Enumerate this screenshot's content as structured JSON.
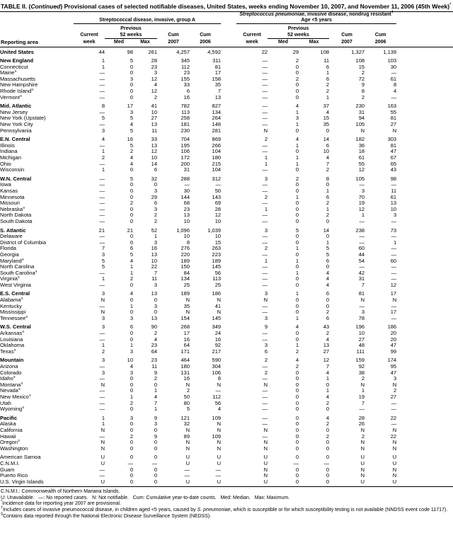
{
  "title": {
    "prefix": "TABLE II. (",
    "italic": "Continued",
    "suffix": ") Provisional cases of selected notifiable diseases, United States, weeks ending November 10, 2007, and November 11, 2006 (45th Week)",
    "star": "*"
  },
  "header": {
    "reporting_area": "Reporting area",
    "group1": {
      "label": "Streptococcal disease, invasive, group A"
    },
    "group2": {
      "label_italic": "Streptococcus pneumoniae",
      "label_rest": ", invasive disease, nondrug resistant",
      "dagger": "†",
      "label_line2": "Age <5 years"
    },
    "sub": {
      "current": "Current",
      "week": "week",
      "previous": "Previous",
      "weeks52": "52 weeks",
      "med": "Med",
      "max": "Max",
      "cum": "Cum",
      "y2007": "2007",
      "y2006": "2006"
    }
  },
  "table": {
    "rows": [
      {
        "area": "United States",
        "bold": true,
        "gap": false,
        "v": [
          "44",
          "98",
          "261",
          "4,257",
          "4,592",
          "22",
          "29",
          "108",
          "1,327",
          "1,139"
        ]
      },
      {
        "area": "New England",
        "bold": true,
        "gap": true,
        "v": [
          "1",
          "5",
          "28",
          "345",
          "311",
          "—",
          "2",
          "11",
          "108",
          "103"
        ]
      },
      {
        "area": "Connecticut",
        "bold": false,
        "gap": false,
        "v": [
          "1",
          "0",
          "23",
          "112",
          "81",
          "—",
          "0",
          "6",
          "15",
          "30"
        ]
      },
      {
        "area": "Maine§",
        "bold": false,
        "gap": false,
        "v": [
          "—",
          "0",
          "3",
          "23",
          "17",
          "—",
          "0",
          "1",
          "2",
          "—"
        ]
      },
      {
        "area": "Massachusetts",
        "bold": false,
        "gap": false,
        "v": [
          "—",
          "3",
          "12",
          "155",
          "158",
          "—",
          "2",
          "6",
          "72",
          "61"
        ]
      },
      {
        "area": "New Hampshire",
        "bold": false,
        "gap": false,
        "v": [
          "—",
          "0",
          "4",
          "33",
          "35",
          "—",
          "0",
          "2",
          "9",
          "8"
        ]
      },
      {
        "area": "Rhode Island§",
        "bold": false,
        "gap": false,
        "v": [
          "—",
          "0",
          "12",
          "6",
          "7",
          "—",
          "0",
          "2",
          "8",
          "4"
        ]
      },
      {
        "area": "Vermont§",
        "bold": false,
        "gap": false,
        "v": [
          "—",
          "0",
          "2",
          "16",
          "13",
          "—",
          "0",
          "1",
          "2",
          "—"
        ]
      },
      {
        "area": "Mid. Atlantic",
        "bold": true,
        "gap": true,
        "v": [
          "8",
          "17",
          "41",
          "782",
          "827",
          "—",
          "4",
          "37",
          "230",
          "163"
        ]
      },
      {
        "area": "New Jersey",
        "bold": false,
        "gap": false,
        "v": [
          "—",
          "3",
          "10",
          "113",
          "134",
          "—",
          "1",
          "4",
          "31",
          "55"
        ]
      },
      {
        "area": "New York (Upstate)",
        "bold": false,
        "gap": false,
        "v": [
          "5",
          "5",
          "27",
          "258",
          "264",
          "—",
          "3",
          "15",
          "94",
          "81"
        ]
      },
      {
        "area": "New York City",
        "bold": false,
        "gap": false,
        "v": [
          "—",
          "4",
          "13",
          "181",
          "148",
          "—",
          "1",
          "35",
          "105",
          "27"
        ]
      },
      {
        "area": "Pennsylvania",
        "bold": false,
        "gap": false,
        "v": [
          "3",
          "5",
          "11",
          "230",
          "281",
          "N",
          "0",
          "0",
          "N",
          "N"
        ]
      },
      {
        "area": "E.N. Central",
        "bold": true,
        "gap": true,
        "v": [
          "4",
          "16",
          "33",
          "704",
          "869",
          "2",
          "4",
          "14",
          "182",
          "303"
        ]
      },
      {
        "area": "Illinois",
        "bold": false,
        "gap": false,
        "v": [
          "—",
          "5",
          "13",
          "195",
          "266",
          "—",
          "1",
          "6",
          "36",
          "81"
        ]
      },
      {
        "area": "Indiana",
        "bold": false,
        "gap": false,
        "v": [
          "1",
          "2",
          "12",
          "106",
          "104",
          "—",
          "0",
          "10",
          "18",
          "47"
        ]
      },
      {
        "area": "Michigan",
        "bold": false,
        "gap": false,
        "v": [
          "2",
          "4",
          "10",
          "172",
          "180",
          "1",
          "1",
          "4",
          "61",
          "67"
        ]
      },
      {
        "area": "Ohio",
        "bold": false,
        "gap": false,
        "v": [
          "—",
          "4",
          "14",
          "200",
          "215",
          "1",
          "1",
          "7",
          "55",
          "65"
        ]
      },
      {
        "area": "Wisconsin",
        "bold": false,
        "gap": false,
        "v": [
          "1",
          "0",
          "6",
          "31",
          "104",
          "—",
          "0",
          "2",
          "12",
          "43"
        ]
      },
      {
        "area": "W.N. Central",
        "bold": true,
        "gap": true,
        "v": [
          "—",
          "5",
          "32",
          "288",
          "312",
          "3",
          "2",
          "8",
          "105",
          "98"
        ]
      },
      {
        "area": "Iowa",
        "bold": false,
        "gap": false,
        "v": [
          "—",
          "0",
          "0",
          "—",
          "—",
          "—",
          "0",
          "0",
          "—",
          "—"
        ]
      },
      {
        "area": "Kansas",
        "bold": false,
        "gap": false,
        "v": [
          "—",
          "0",
          "3",
          "30",
          "50",
          "—",
          "0",
          "1",
          "3",
          "11"
        ]
      },
      {
        "area": "Minnesota",
        "bold": false,
        "gap": false,
        "v": [
          "—",
          "0",
          "29",
          "144",
          "143",
          "2",
          "1",
          "6",
          "70",
          "61"
        ]
      },
      {
        "area": "Missouri",
        "bold": false,
        "gap": false,
        "v": [
          "—",
          "2",
          "6",
          "68",
          "69",
          "—",
          "0",
          "2",
          "19",
          "13"
        ]
      },
      {
        "area": "Nebraska§",
        "bold": false,
        "gap": false,
        "v": [
          "—",
          "0",
          "3",
          "23",
          "28",
          "1",
          "0",
          "1",
          "12",
          "10"
        ]
      },
      {
        "area": "North Dakota",
        "bold": false,
        "gap": false,
        "v": [
          "—",
          "0",
          "2",
          "13",
          "12",
          "—",
          "0",
          "2",
          "1",
          "3"
        ]
      },
      {
        "area": "South Dakota",
        "bold": false,
        "gap": false,
        "v": [
          "—",
          "0",
          "2",
          "10",
          "10",
          "—",
          "0",
          "0",
          "—",
          "—"
        ]
      },
      {
        "area": "S. Atlantic",
        "bold": true,
        "gap": true,
        "v": [
          "21",
          "21",
          "52",
          "1,096",
          "1,039",
          "3",
          "5",
          "14",
          "238",
          "73"
        ]
      },
      {
        "area": "Delaware",
        "bold": false,
        "gap": false,
        "v": [
          "—",
          "0",
          "1",
          "10",
          "10",
          "—",
          "0",
          "0",
          "—",
          "—"
        ]
      },
      {
        "area": "District of Columbia",
        "bold": false,
        "gap": false,
        "v": [
          "—",
          "0",
          "3",
          "8",
          "15",
          "—",
          "0",
          "1",
          "—",
          "1"
        ]
      },
      {
        "area": "Florida",
        "bold": false,
        "gap": false,
        "v": [
          "7",
          "6",
          "16",
          "276",
          "263",
          "2",
          "1",
          "5",
          "60",
          "—"
        ]
      },
      {
        "area": "Georgia",
        "bold": false,
        "gap": false,
        "v": [
          "3",
          "5",
          "13",
          "220",
          "223",
          "—",
          "0",
          "5",
          "44",
          "—"
        ]
      },
      {
        "area": "Maryland§",
        "bold": false,
        "gap": false,
        "v": [
          "5",
          "4",
          "10",
          "189",
          "189",
          "1",
          "1",
          "6",
          "54",
          "60"
        ]
      },
      {
        "area": "North Carolina",
        "bold": false,
        "gap": false,
        "v": [
          "5",
          "1",
          "22",
          "150",
          "145",
          "—",
          "0",
          "0",
          "—",
          "—"
        ]
      },
      {
        "area": "South Carolina§",
        "bold": false,
        "gap": false,
        "v": [
          "—",
          "1",
          "7",
          "84",
          "56",
          "—",
          "1",
          "4",
          "42",
          "—"
        ]
      },
      {
        "area": "Virginia§",
        "bold": false,
        "gap": false,
        "v": [
          "1",
          "2",
          "11",
          "134",
          "113",
          "—",
          "0",
          "4",
          "31",
          "—"
        ]
      },
      {
        "area": "West Virginia",
        "bold": false,
        "gap": false,
        "v": [
          "—",
          "0",
          "3",
          "25",
          "25",
          "—",
          "0",
          "4",
          "7",
          "12"
        ]
      },
      {
        "area": "E.S. Central",
        "bold": true,
        "gap": true,
        "v": [
          "3",
          "4",
          "13",
          "189",
          "186",
          "3",
          "1",
          "6",
          "81",
          "17"
        ]
      },
      {
        "area": "Alabama§",
        "bold": false,
        "gap": false,
        "v": [
          "N",
          "0",
          "0",
          "N",
          "N",
          "N",
          "0",
          "0",
          "N",
          "N"
        ]
      },
      {
        "area": "Kentucky",
        "bold": false,
        "gap": false,
        "v": [
          "—",
          "1",
          "3",
          "35",
          "41",
          "—",
          "0",
          "0",
          "—",
          "—"
        ]
      },
      {
        "area": "Mississippi",
        "bold": false,
        "gap": false,
        "v": [
          "N",
          "0",
          "0",
          "N",
          "N",
          "—",
          "0",
          "2",
          "3",
          "17"
        ]
      },
      {
        "area": "Tennessee§",
        "bold": false,
        "gap": false,
        "v": [
          "3",
          "3",
          "13",
          "154",
          "145",
          "3",
          "1",
          "6",
          "78",
          "—"
        ]
      },
      {
        "area": "W.S. Central",
        "bold": true,
        "gap": true,
        "v": [
          "3",
          "6",
          "90",
          "268",
          "349",
          "9",
          "4",
          "43",
          "196",
          "186"
        ]
      },
      {
        "area": "Arkansas§",
        "bold": false,
        "gap": false,
        "v": [
          "—",
          "0",
          "2",
          "17",
          "24",
          "—",
          "0",
          "2",
          "10",
          "20"
        ]
      },
      {
        "area": "Louisiana",
        "bold": false,
        "gap": false,
        "v": [
          "—",
          "0",
          "4",
          "16",
          "16",
          "—",
          "0",
          "4",
          "27",
          "20"
        ]
      },
      {
        "area": "Oklahoma",
        "bold": false,
        "gap": false,
        "v": [
          "1",
          "1",
          "23",
          "64",
          "92",
          "3",
          "1",
          "13",
          "48",
          "47"
        ]
      },
      {
        "area": "Texas§",
        "bold": false,
        "gap": false,
        "v": [
          "2",
          "3",
          "64",
          "171",
          "217",
          "6",
          "2",
          "27",
          "111",
          "99"
        ]
      },
      {
        "area": "Mountain",
        "bold": true,
        "gap": true,
        "v": [
          "3",
          "10",
          "23",
          "464",
          "590",
          "2",
          "4",
          "12",
          "159",
          "174"
        ]
      },
      {
        "area": "Arizona",
        "bold": false,
        "gap": false,
        "v": [
          "—",
          "4",
          "11",
          "180",
          "304",
          "—",
          "2",
          "7",
          "92",
          "95"
        ]
      },
      {
        "area": "Colorado",
        "bold": false,
        "gap": false,
        "v": [
          "3",
          "3",
          "9",
          "131",
          "106",
          "2",
          "0",
          "4",
          "38",
          "47"
        ]
      },
      {
        "area": "Idaho§",
        "bold": false,
        "gap": false,
        "v": [
          "—",
          "0",
          "2",
          "16",
          "8",
          "—",
          "0",
          "1",
          "2",
          "3"
        ]
      },
      {
        "area": "Montana§",
        "bold": false,
        "gap": false,
        "v": [
          "N",
          "0",
          "0",
          "N",
          "N",
          "N",
          "0",
          "0",
          "N",
          "N"
        ]
      },
      {
        "area": "Nevada§",
        "bold": false,
        "gap": false,
        "v": [
          "—",
          "0",
          "1",
          "2",
          "—",
          "—",
          "0",
          "1",
          "1",
          "2"
        ]
      },
      {
        "area": "New Mexico§",
        "bold": false,
        "gap": false,
        "v": [
          "—",
          "1",
          "4",
          "50",
          "112",
          "—",
          "0",
          "4",
          "19",
          "27"
        ]
      },
      {
        "area": "Utah",
        "bold": false,
        "gap": false,
        "v": [
          "—",
          "2",
          "7",
          "80",
          "56",
          "—",
          "0",
          "2",
          "7",
          "—"
        ]
      },
      {
        "area": "Wyoming§",
        "bold": false,
        "gap": false,
        "v": [
          "—",
          "0",
          "1",
          "5",
          "4",
          "—",
          "0",
          "0",
          "—",
          "—"
        ]
      },
      {
        "area": "Pacific",
        "bold": true,
        "gap": true,
        "v": [
          "1",
          "3",
          "9",
          "121",
          "109",
          "—",
          "0",
          "4",
          "28",
          "22"
        ]
      },
      {
        "area": "Alaska",
        "bold": false,
        "gap": false,
        "v": [
          "1",
          "0",
          "3",
          "32",
          "N",
          "—",
          "0",
          "2",
          "26",
          "—"
        ]
      },
      {
        "area": "California",
        "bold": false,
        "gap": false,
        "v": [
          "N",
          "0",
          "0",
          "N",
          "N",
          "N",
          "0",
          "0",
          "N",
          "N"
        ]
      },
      {
        "area": "Hawaii",
        "bold": false,
        "gap": false,
        "v": [
          "—",
          "2",
          "9",
          "89",
          "109",
          "—",
          "0",
          "2",
          "2",
          "22"
        ]
      },
      {
        "area": "Oregon§",
        "bold": false,
        "gap": false,
        "v": [
          "N",
          "0",
          "0",
          "N",
          "N",
          "N",
          "0",
          "0",
          "N",
          "N"
        ]
      },
      {
        "area": "Washington",
        "bold": false,
        "gap": false,
        "v": [
          "N",
          "0",
          "0",
          "N",
          "N",
          "N",
          "0",
          "0",
          "N",
          "N"
        ]
      },
      {
        "area": "American Samoa",
        "bold": false,
        "gap": true,
        "v": [
          "U",
          "0",
          "0",
          "U",
          "U",
          "U",
          "0",
          "0",
          "U",
          "U"
        ]
      },
      {
        "area": "C.N.M.I.",
        "bold": false,
        "gap": false,
        "v": [
          "U",
          "—",
          "—",
          "U",
          "U",
          "U",
          "—",
          "—",
          "U",
          "U"
        ]
      },
      {
        "area": "Guam",
        "bold": false,
        "gap": false,
        "v": [
          "—",
          "0",
          "0",
          "—",
          "—",
          "N",
          "0",
          "0",
          "N",
          "N"
        ]
      },
      {
        "area": "Puerto Rico",
        "bold": false,
        "gap": false,
        "v": [
          "—",
          "0",
          "0",
          "—",
          "—",
          "N",
          "0",
          "0",
          "N",
          "N"
        ]
      },
      {
        "area": "U.S. Virgin Islands",
        "bold": false,
        "gap": false,
        "v": [
          "U",
          "0",
          "0",
          "U",
          "U",
          "U",
          "0",
          "0",
          "U",
          "U"
        ]
      }
    ]
  },
  "footnotes": {
    "cnmi": "C.N.M.I.: Commonwealth of Northern Mariana Islands.",
    "legend": "U: Unavailable.   —: No reported cases.   N: Not notifiable.   Cum: Cumulative year-to-date counts.   Med: Median.   Max: Maximum.",
    "star_sym": "*",
    "star_text": "Incidence data for reporting year 2007 are provisional.",
    "dagger_sym": "†",
    "dagger_pre": "Includes cases of invasive pneumococcal disease, in children aged <5 years, caused by ",
    "dagger_italic": "S. pneumoniae",
    "dagger_post": ", which is susceptible or for which susceptibility testing is not available (NNDSS event code 11717).",
    "section_sym": "§",
    "section_text": "Contains data reported through the National Electronic Disease Surveillance System (NEDSS)."
  }
}
